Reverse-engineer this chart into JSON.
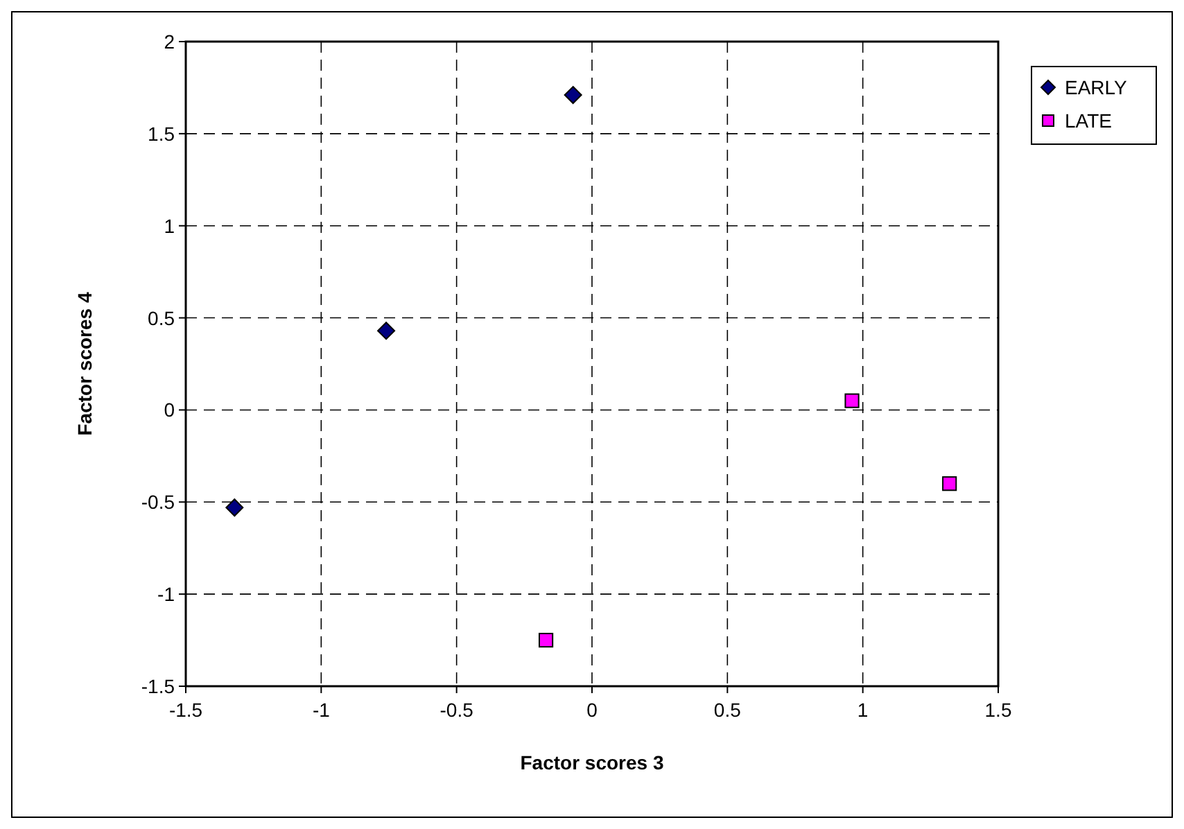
{
  "chart_data": {
    "type": "scatter",
    "xlabel": "Factor scores 3",
    "ylabel": "Factor scores 4",
    "xlim": [
      -1.5,
      1.5
    ],
    "xticks": [
      -1.5,
      -1,
      -0.5,
      0,
      0.5,
      1,
      1.5
    ],
    "ylim": [
      -1.5,
      2
    ],
    "yticks": [
      -1.5,
      -1,
      -0.5,
      0,
      0.5,
      1,
      1.5,
      2
    ],
    "grid": true,
    "legend": "right",
    "series": [
      {
        "name": "EARLY",
        "color": "#000080",
        "marker": "diamond",
        "x": [
          -1.32,
          -0.76,
          -0.07
        ],
        "values": [
          -0.53,
          0.43,
          1.71
        ]
      },
      {
        "name": "LATE",
        "color": "#ff00ff",
        "marker": "square",
        "x": [
          -0.17,
          0.96,
          1.32
        ],
        "values": [
          -1.25,
          0.05,
          -0.4
        ]
      }
    ]
  }
}
